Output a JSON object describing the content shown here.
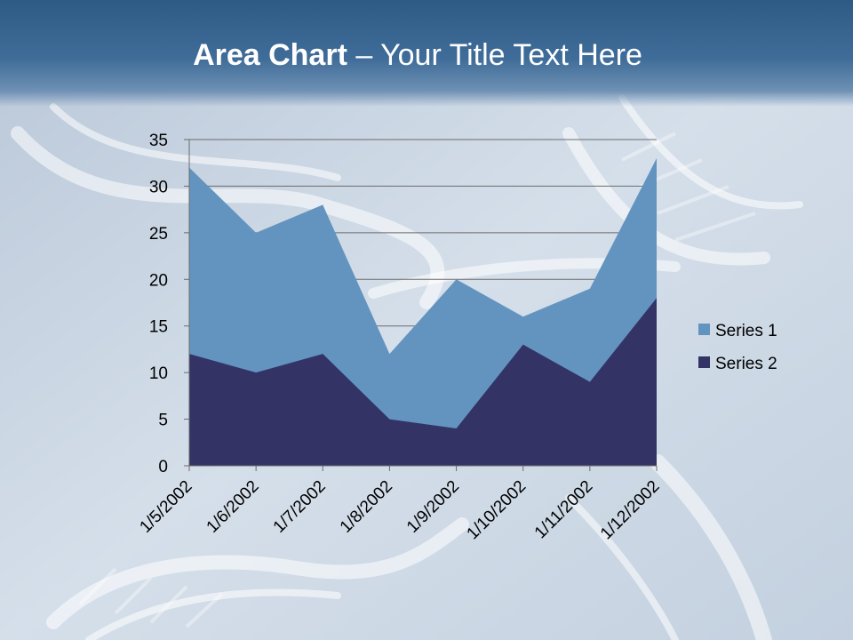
{
  "slide": {
    "title_bold": "Area Chart",
    "title_rest": " – Your Title Text Here"
  },
  "colors": {
    "series1": "#6394bf",
    "series2": "#333366",
    "gridline": "#6b6b6b",
    "title_bar": "#2e5a86"
  },
  "chart_data": {
    "type": "area",
    "title": "",
    "xlabel": "",
    "ylabel": "",
    "categories": [
      "1/5/2002",
      "1/6/2002",
      "1/7/2002",
      "1/8/2002",
      "1/9/2002",
      "1/10/2002",
      "1/11/2002",
      "1/12/2002"
    ],
    "series": [
      {
        "name": "Series 1",
        "values": [
          32,
          25,
          28,
          12,
          20,
          16,
          19,
          33
        ],
        "color": "#6394bf"
      },
      {
        "name": "Series 2",
        "values": [
          12,
          10,
          12,
          5,
          4,
          13,
          9,
          18
        ],
        "color": "#333366"
      }
    ],
    "ylim": [
      0,
      35
    ],
    "yticks": [
      "0",
      "5",
      "10",
      "15",
      "20",
      "25",
      "30",
      "35"
    ],
    "grid": true,
    "legend_position": "right"
  }
}
